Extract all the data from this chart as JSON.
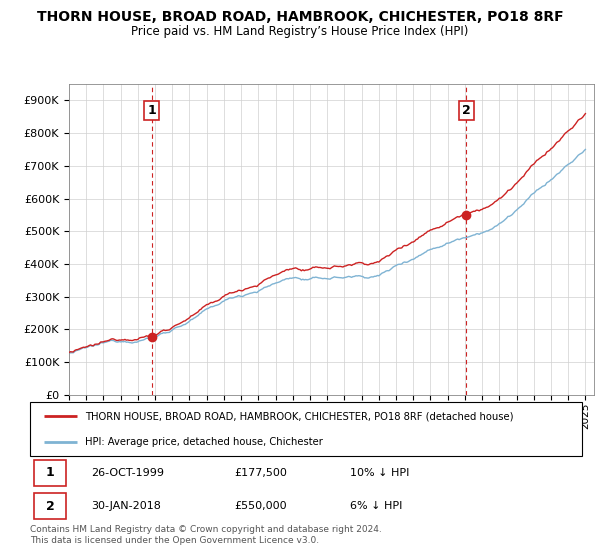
{
  "title": "THORN HOUSE, BROAD ROAD, HAMBROOK, CHICHESTER, PO18 8RF",
  "subtitle": "Price paid vs. HM Land Registry’s House Price Index (HPI)",
  "ylabel_ticks": [
    "£0",
    "£100K",
    "£200K",
    "£300K",
    "£400K",
    "£500K",
    "£600K",
    "£700K",
    "£800K",
    "£900K"
  ],
  "y_values": [
    0,
    100000,
    200000,
    300000,
    400000,
    500000,
    600000,
    700000,
    800000,
    900000
  ],
  "ylim": [
    0,
    950000
  ],
  "x_start_year": 1995,
  "x_end_year": 2025,
  "sale1_date": 1999.82,
  "sale1_price": 177500,
  "sale2_date": 2018.08,
  "sale2_price": 550000,
  "hpi_color": "#7fb3d3",
  "price_color": "#cc2222",
  "vline_color": "#cc2222",
  "legend_house": "THORN HOUSE, BROAD ROAD, HAMBROOK, CHICHESTER, PO18 8RF (detached house)",
  "legend_hpi": "HPI: Average price, detached house, Chichester",
  "table_row1": [
    "1",
    "26-OCT-1999",
    "£177,500",
    "10% ↓ HPI"
  ],
  "table_row2": [
    "2",
    "30-JAN-2018",
    "£550,000",
    "6% ↓ HPI"
  ],
  "footnote": "Contains HM Land Registry data © Crown copyright and database right 2024.\nThis data is licensed under the Open Government Licence v3.0."
}
